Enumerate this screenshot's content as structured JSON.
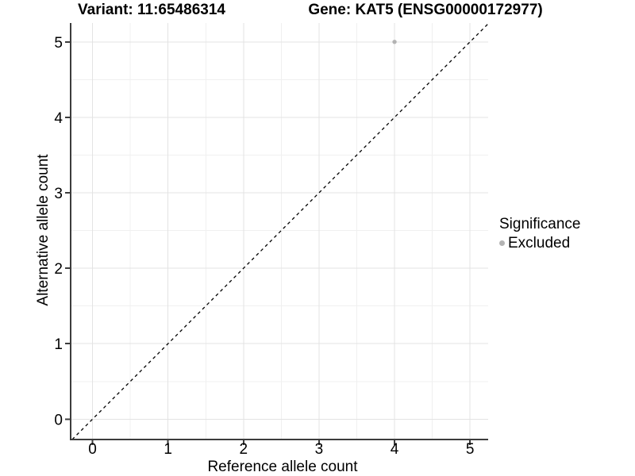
{
  "chart_data": {
    "type": "scatter",
    "title_left": "Variant: 11:65486314",
    "title_right": "Gene: KAT5 (ENSG00000172977)",
    "xlabel": "Reference allele count",
    "ylabel": "Alternative allele count",
    "xticks": [
      0,
      1,
      2,
      3,
      4,
      5
    ],
    "yticks": [
      0,
      1,
      2,
      3,
      4,
      5
    ],
    "xlim": [
      -0.29,
      5.24
    ],
    "ylim": [
      -0.27,
      5.25
    ],
    "grid": "major+minor",
    "points": [
      {
        "x": 4,
        "y": 5,
        "series": "Excluded"
      }
    ],
    "reference_line": {
      "style": "dashed",
      "slope": 1,
      "intercept": 0,
      "color": "#000000"
    },
    "legend": {
      "title": "Significance",
      "position": "right",
      "entries": [
        {
          "label": "Excluded",
          "color": "#b3b3b3"
        }
      ]
    },
    "colors": {
      "point": "#b3b3b3",
      "grid_major": "#e3e3e3",
      "grid_minor": "#f0f0f0",
      "axis_line": "#3c3c3c",
      "tick": "#3c3c3c",
      "text": "#000000"
    }
  }
}
